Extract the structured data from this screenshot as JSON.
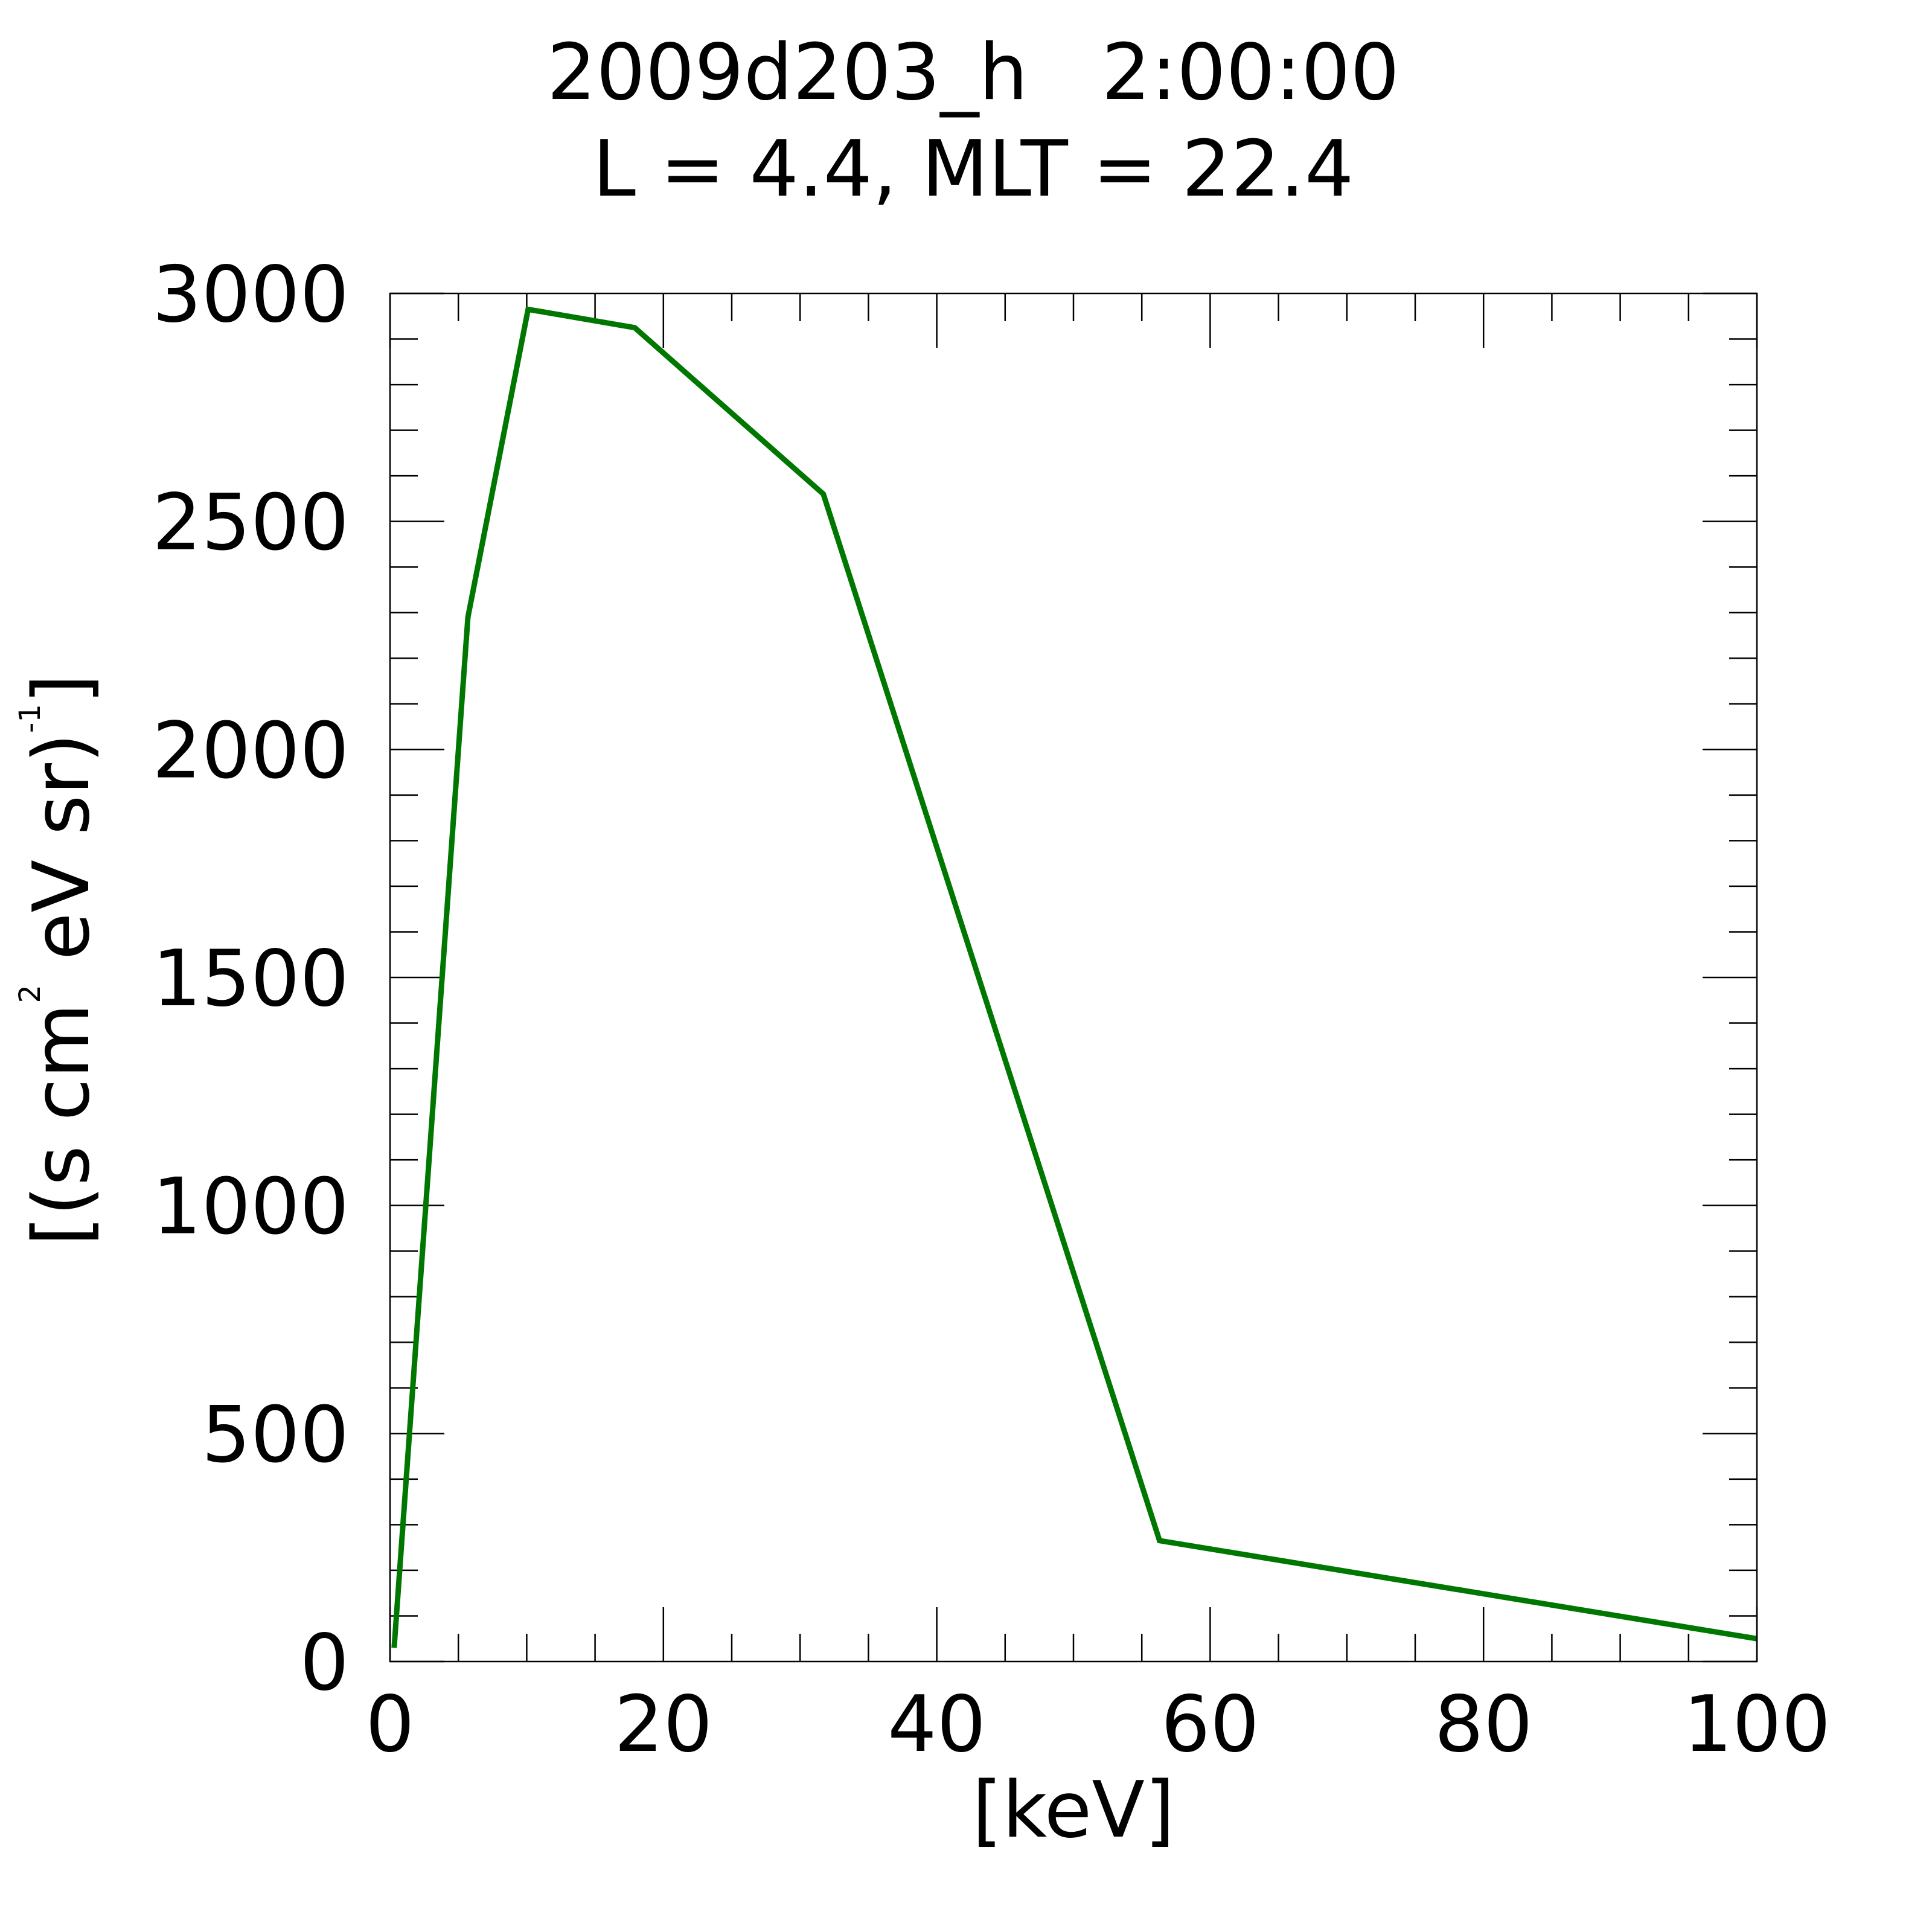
{
  "chart_data": {
    "type": "line",
    "title_line1": "2009d203_h   2:00:00",
    "title_line2": "L = 4.4, MLT = 22.4",
    "xlabel": "[keV]",
    "ylabel_main": "[(s cm",
    "ylabel_sup1": "2",
    "ylabel_mid": " eV sr)",
    "ylabel_sup2": "-1",
    "ylabel_end": "]",
    "xlim": [
      0,
      100
    ],
    "ylim": [
      0,
      3000
    ],
    "x_major_ticks": [
      0,
      20,
      40,
      60,
      80,
      100
    ],
    "x_tick_labels": [
      "0",
      "20",
      "40",
      "60",
      "80",
      "100"
    ],
    "x_minor_step": 5,
    "y_major_ticks": [
      0,
      500,
      1000,
      1500,
      2000,
      2500,
      3000
    ],
    "y_tick_labels": [
      "0",
      "500",
      "1000",
      "1500",
      "2000",
      "2500",
      "3000"
    ],
    "y_minor_step": 100,
    "grid": false,
    "series": [
      {
        "color": "#007700",
        "x": [
          0.3,
          5.7,
          10.1,
          17.9,
          31.7,
          56.3,
          100
        ],
        "y": [
          30,
          2290,
          2965,
          2925,
          2560,
          265,
          50
        ]
      }
    ]
  }
}
